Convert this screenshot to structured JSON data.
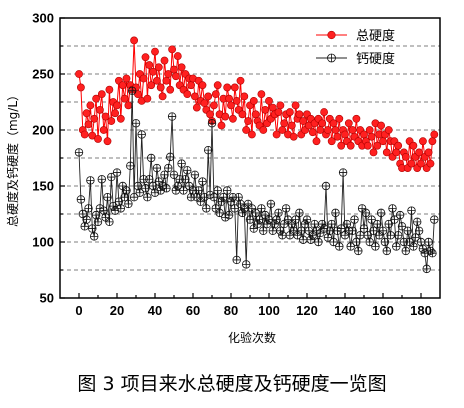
{
  "caption": "图 3 项目来水总硬度及钙硬度一览图",
  "chart_data": {
    "type": "line",
    "title": "",
    "xlabel": "化验次数",
    "ylabel": "总硬度及钙硬度（mg/L）",
    "xlim": [
      -10,
      190
    ],
    "ylim": [
      50,
      300
    ],
    "xticks": [
      0,
      20,
      40,
      60,
      80,
      100,
      120,
      140,
      160,
      180
    ],
    "yticks": [
      50,
      100,
      150,
      200,
      250,
      300
    ],
    "grid": true,
    "grid_y": [
      75,
      100,
      125,
      150,
      175,
      200,
      225,
      250,
      275
    ],
    "legend_position": "top-right",
    "x": [
      0,
      1,
      2,
      3,
      4,
      5,
      6,
      7,
      8,
      9,
      10,
      11,
      12,
      13,
      14,
      15,
      16,
      17,
      18,
      19,
      20,
      21,
      22,
      23,
      24,
      25,
      26,
      27,
      28,
      29,
      30,
      31,
      32,
      33,
      34,
      35,
      36,
      37,
      38,
      39,
      40,
      41,
      42,
      43,
      44,
      45,
      46,
      47,
      48,
      49,
      50,
      51,
      52,
      53,
      54,
      55,
      56,
      57,
      58,
      59,
      60,
      61,
      62,
      63,
      64,
      65,
      66,
      67,
      68,
      69,
      70,
      71,
      72,
      73,
      74,
      75,
      76,
      77,
      78,
      79,
      80,
      81,
      82,
      83,
      84,
      85,
      86,
      87,
      88,
      89,
      90,
      91,
      92,
      93,
      94,
      95,
      96,
      97,
      98,
      99,
      100,
      101,
      102,
      103,
      104,
      105,
      106,
      107,
      108,
      109,
      110,
      111,
      112,
      113,
      114,
      115,
      116,
      117,
      118,
      119,
      120,
      121,
      122,
      123,
      124,
      125,
      126,
      127,
      128,
      129,
      130,
      131,
      132,
      133,
      134,
      135,
      136,
      137,
      138,
      139,
      140,
      141,
      142,
      143,
      144,
      145,
      146,
      147,
      148,
      149,
      150,
      151,
      152,
      153,
      154,
      155,
      156,
      157,
      158,
      159,
      160,
      161,
      162,
      163,
      164,
      165,
      166,
      167,
      168,
      169,
      170,
      171,
      172,
      173,
      174,
      175,
      176,
      177,
      178,
      179,
      180,
      181,
      182,
      183,
      184,
      185,
      186,
      187
    ],
    "series": [
      {
        "name": "总硬度",
        "color": "#ff0000",
        "marker": "filled-circle",
        "values": [
          250,
          238,
          200,
          196,
          215,
          205,
          222,
          195,
          210,
          228,
          192,
          218,
          232,
          200,
          212,
          190,
          236,
          208,
          225,
          215,
          222,
          244,
          210,
          240,
          228,
          246,
          222,
          240,
          236,
          280,
          238,
          232,
          250,
          226,
          246,
          265,
          228,
          258,
          240,
          252,
          270,
          244,
          256,
          238,
          230,
          262,
          244,
          250,
          236,
          272,
          254,
          248,
          266,
          240,
          256,
          236,
          250,
          232,
          246,
          240,
          246,
          230,
          220,
          244,
          226,
          240,
          224,
          218,
          230,
          214,
          208,
          222,
          232,
          240,
          214,
          204,
          228,
          212,
          238,
          228,
          222,
          210,
          238,
          226,
          218,
          244,
          214,
          230,
          200,
          208,
          222,
          196,
          226,
          214,
          208,
          204,
          232,
          200,
          218,
          206,
          226,
          210,
          220,
          214,
          196,
          216,
          222,
          200,
          206,
          214,
          196,
          216,
          204,
          194,
          222,
          210,
          214,
          196,
          208,
          200,
          214,
          204,
          210,
          198,
          206,
          190,
          210,
          200,
          206,
          216,
          196,
          200,
          210,
          190,
          206,
          200,
          194,
          210,
          186,
          200,
          196,
          190,
          206,
          186,
          200,
          194,
          210,
          190,
          200,
          186,
          196,
          190,
          186,
          200,
          194,
          180,
          206,
          186,
          196,
          204,
          190,
          196,
          180,
          200,
          190,
          176,
          190,
          180,
          186,
          170,
          166,
          180,
          176,
          166,
          190,
          170,
          186,
          176,
          166,
          180,
          170,
          190,
          176,
          166,
          180,
          170,
          190,
          196
        ]
      },
      {
        "name": "钙硬度",
        "color": "#000000",
        "marker": "crossed-circle",
        "values": [
          180,
          138,
          125,
          114,
          120,
          130,
          155,
          112,
          105,
          124,
          118,
          130,
          156,
          128,
          122,
          140,
          118,
          158,
          132,
          128,
          162,
          136,
          130,
          150,
          140,
          146,
          134,
          168,
          235,
          140,
          206,
          150,
          144,
          196,
          156,
          148,
          140,
          156,
          175,
          150,
          144,
          166,
          154,
          146,
          150,
          160,
          148,
          166,
          176,
          212,
          160,
          146,
          150,
          156,
          170,
          146,
          156,
          164,
          150,
          140,
          146,
          160,
          140,
          146,
          136,
          154,
          140,
          130,
          182,
          142,
          206,
          140,
          130,
          146,
          126,
          136,
          140,
          122,
          146,
          124,
          136,
          140,
          130,
          84,
          140,
          134,
          126,
          130,
          80,
          134,
          120,
          130,
          112,
          126,
          116,
          120,
          130,
          110,
          124,
          116,
          120,
          134,
          110,
          116,
          120,
          126,
          110,
          106,
          116,
          130,
          120,
          106,
          116,
          110,
          120,
          106,
          126,
          110,
          102,
          116,
          120,
          110,
          102,
          106,
          116,
          110,
          100,
          108,
          116,
          112,
          150,
          104,
          110,
          116,
          100,
          126,
          110,
          96,
          112,
          162,
          106,
          116,
          110,
          96,
          110,
          120,
          100,
          92,
          106,
          130,
          112,
          126,
          106,
          100,
          120,
          110,
          96,
          116,
          106,
          126,
          110,
          100,
          92,
          116,
          106,
          130,
          120,
          96,
          106,
          124,
          114,
          100,
          92,
          110,
          100,
          128,
          96,
          104,
          118,
          110,
          100,
          94,
          90,
          76,
          100,
          92,
          90,
          120
        ]
      }
    ]
  }
}
